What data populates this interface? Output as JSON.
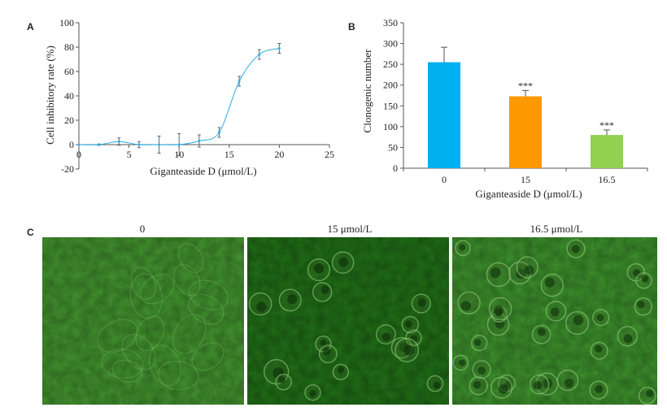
{
  "panels": {
    "a_letter": "A",
    "b_letter": "B",
    "c_letter": "C"
  },
  "chart_data": [
    {
      "type": "line",
      "xlabel": "Giganteaside D (μmol/L)",
      "ylabel": "Cell inhibitory rate (%)",
      "xlim": [
        0,
        25
      ],
      "ylim": [
        -20,
        100
      ],
      "xticks": [
        0,
        5,
        10,
        15,
        20,
        25
      ],
      "yticks": [
        -20,
        0,
        20,
        40,
        60,
        80,
        100
      ],
      "color": "#29aee6",
      "grid": false,
      "points": [
        {
          "x": 0,
          "y": 0,
          "err": 0
        },
        {
          "x": 2,
          "y": 0,
          "err": 0.5
        },
        {
          "x": 4,
          "y": 2.5,
          "err": 3
        },
        {
          "x": 6,
          "y": 0,
          "err": 2.5
        },
        {
          "x": 8,
          "y": 0,
          "err": 7
        },
        {
          "x": 10,
          "y": 0,
          "err": 9
        },
        {
          "x": 12,
          "y": 3,
          "err": 5
        },
        {
          "x": 14,
          "y": 10,
          "err": 4
        },
        {
          "x": 16,
          "y": 52,
          "err": 4
        },
        {
          "x": 18,
          "y": 74,
          "err": 4
        },
        {
          "x": 20,
          "y": 79,
          "err": 4
        }
      ]
    },
    {
      "type": "bar",
      "xlabel": "Giganteaside D (μmol/L)",
      "ylabel": "Clonogenic number",
      "ylim": [
        0,
        350
      ],
      "yticks": [
        0,
        50,
        100,
        150,
        200,
        250,
        300,
        350
      ],
      "categories": [
        "0",
        "15",
        "16.5"
      ],
      "values": [
        255,
        173,
        80
      ],
      "errors": [
        36,
        14,
        12
      ],
      "colors": [
        "#00b0f0",
        "#ff9900",
        "#92d050"
      ],
      "annotations": [
        "",
        "***",
        "***"
      ]
    }
  ],
  "images": [
    {
      "label": "0",
      "tone": "#3f8c2c"
    },
    {
      "label": "15 μmol/L",
      "tone": "#1f6a16"
    },
    {
      "label": "16.5 μmol/L",
      "tone": "#3a8a2a"
    }
  ]
}
